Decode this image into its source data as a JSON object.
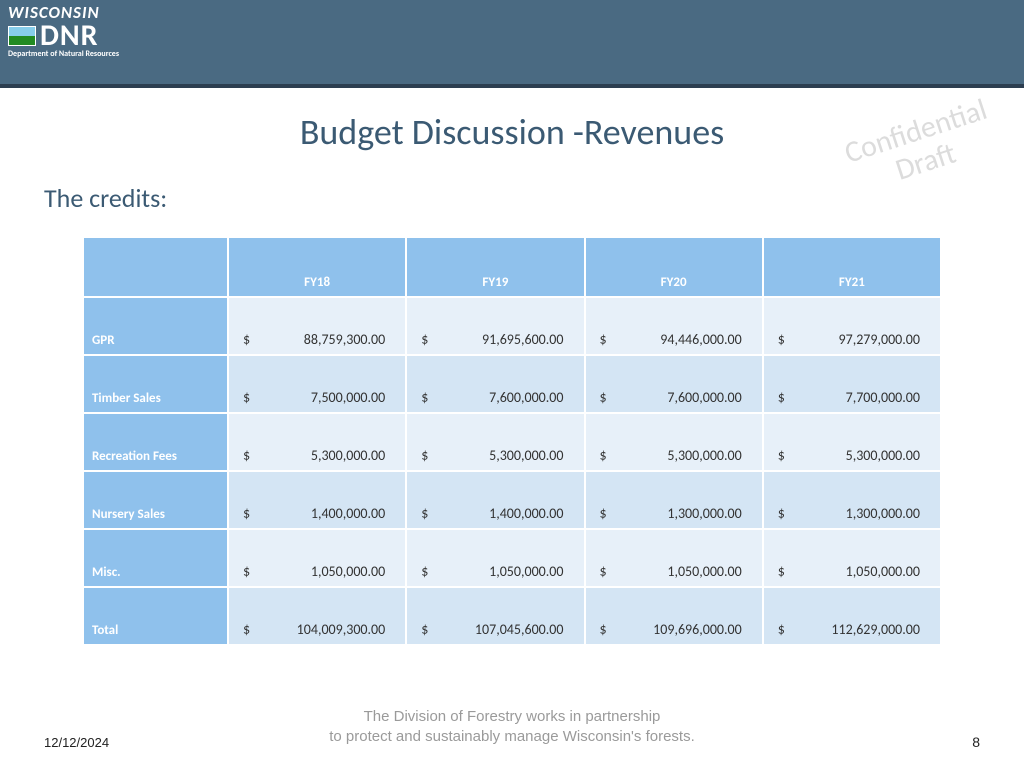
{
  "logo": {
    "line1": "WISCONSIN",
    "line2": "DNR",
    "line3": "Department of Natural Resources"
  },
  "watermark": {
    "line1": "Confidential",
    "line2": "Draft"
  },
  "title": "Budget Discussion -Revenues",
  "subtitle": "The credits:",
  "table": {
    "columns": [
      "FY18",
      "FY19",
      "FY20",
      "FY21"
    ],
    "rows": [
      {
        "label": "GPR",
        "values": [
          "88,759,300.00",
          "91,695,600.00",
          "94,446,000.00",
          "97,279,000.00"
        ]
      },
      {
        "label": "Timber Sales",
        "values": [
          "7,500,000.00",
          "7,600,000.00",
          "7,600,000.00",
          "7,700,000.00"
        ]
      },
      {
        "label": "Recreation Fees",
        "values": [
          "5,300,000.00",
          "5,300,000.00",
          "5,300,000.00",
          "5,300,000.00"
        ]
      },
      {
        "label": "Nursery Sales",
        "values": [
          "1,400,000.00",
          "1,400,000.00",
          "1,300,000.00",
          "1,300,000.00"
        ]
      },
      {
        "label": "Misc.",
        "values": [
          "1,050,000.00",
          "1,050,000.00",
          "1,050,000.00",
          "1,050,000.00"
        ]
      },
      {
        "label": "Total",
        "values": [
          "104,009,300.00",
          "107,045,600.00",
          "109,696,000.00",
          "112,629,000.00"
        ]
      }
    ],
    "currency_symbol": "$",
    "header_bg": "#8fc1ec",
    "rowlabel_bg": "#8fc1ec",
    "odd_row_bg": "#e7f0f9",
    "even_row_bg": "#d4e5f4",
    "border_color": "#ffffff",
    "header_text_color": "#ffffff",
    "cell_text_color": "#333333",
    "font_size_header": 13,
    "font_size_cell": 14
  },
  "footer": {
    "line1": "The Division of Forestry works in partnership",
    "line2": "to protect and sustainably manage Wisconsin's forests.",
    "date": "12/12/2024",
    "page": "8"
  },
  "colors": {
    "header_bar": "#4a6a82",
    "header_border": "#2c3e50",
    "title_color": "#3b5a73",
    "watermark_color": "#c0c0c0",
    "footer_text_color": "#9a9a9a"
  }
}
